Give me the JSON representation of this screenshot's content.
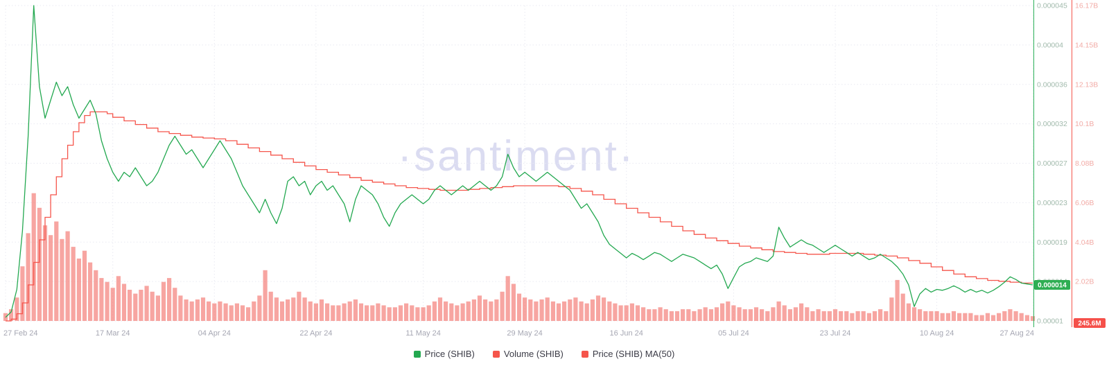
{
  "watermark": "·santiment·",
  "legend": {
    "items": [
      {
        "label": "Price (SHIB)",
        "color": "#23a850"
      },
      {
        "label": "Volume (SHIB)",
        "color": "#f5554b"
      },
      {
        "label": "Price (SHIB) MA(50)",
        "color": "#f5554b"
      }
    ]
  },
  "chart_data": {
    "type": "line",
    "title": "",
    "x_range": [
      "27 Feb 24",
      "27 Aug 24"
    ],
    "x_unit": "days since 27 Feb 24",
    "x_tick_days": [
      0,
      19,
      37,
      55,
      74,
      92,
      110,
      129,
      147,
      165,
      182
    ],
    "x_tick_labels": [
      "27 Feb 24",
      "17 Mar 24",
      "04 Apr 24",
      "22 Apr 24",
      "11 May 24",
      "29 May 24",
      "16 Jun 24",
      "05 Jul 24",
      "23 Jul 24",
      "10 Aug 24",
      "27 Aug 24"
    ],
    "grid": true,
    "legend_position": "bottom-center",
    "price_axis": {
      "side": "right",
      "color": "#2bb159",
      "label_color": "#a0b9ab",
      "min": 1e-05,
      "max": 4.5e-05,
      "tick_labels": [
        "0.000045",
        "0.00004",
        "0.000036",
        "0.000032",
        "0.000027",
        "0.000023",
        "0.000019",
        "0.000014",
        "0.00001"
      ]
    },
    "volume_axis": {
      "side": "far-right",
      "color": "#f5554b",
      "label_color": "#f2aba6",
      "min": 0,
      "max_label": "16.17B",
      "tick_labels": [
        "16.17B",
        "14.15B",
        "12.13B",
        "10.1B",
        "8.08B",
        "6.06B",
        "4.04B",
        "2.02B",
        "0"
      ]
    },
    "current": {
      "price_label": "0.000014",
      "price_value_micro": 14.0,
      "price_badge_color": "#2fae53",
      "volume_label": "245.6M",
      "volume_value_b": 0.2456,
      "volume_badge_color": "#f5504a"
    },
    "series": [
      {
        "name": "Price (SHIB)",
        "type": "line",
        "color": "#23a850",
        "unit": "1e-6 USD",
        "values": [
          10.4,
          11.0,
          13.5,
          20.0,
          30.5,
          45.0,
          36.0,
          32.5,
          34.5,
          36.5,
          35.0,
          36.0,
          34.0,
          32.5,
          33.5,
          34.5,
          33.0,
          30.0,
          28.0,
          26.5,
          25.5,
          26.5,
          26.0,
          27.0,
          26.0,
          25.0,
          25.5,
          26.5,
          28.0,
          29.5,
          30.5,
          29.5,
          28.5,
          29.0,
          28.0,
          27.0,
          28.0,
          29.0,
          30.0,
          29.0,
          28.0,
          26.5,
          25.0,
          24.0,
          23.0,
          22.0,
          23.5,
          22.0,
          20.8,
          22.5,
          25.5,
          26.0,
          25.0,
          25.5,
          24.0,
          25.0,
          25.5,
          24.5,
          25.0,
          24.0,
          23.0,
          21.0,
          23.5,
          25.0,
          24.5,
          24.0,
          23.0,
          21.5,
          20.5,
          22.0,
          23.0,
          23.5,
          24.0,
          23.5,
          23.0,
          23.5,
          24.5,
          25.0,
          24.5,
          24.0,
          24.5,
          25.0,
          24.5,
          25.0,
          25.5,
          25.0,
          24.5,
          25.0,
          26.0,
          28.5,
          27.0,
          26.0,
          26.5,
          26.0,
          25.5,
          26.0,
          26.5,
          26.0,
          25.5,
          25.0,
          24.5,
          23.5,
          22.5,
          23.0,
          22.0,
          21.0,
          19.5,
          18.5,
          18.0,
          17.5,
          17.0,
          17.5,
          17.2,
          16.8,
          17.2,
          17.6,
          17.4,
          17.0,
          16.6,
          17.0,
          17.4,
          17.2,
          17.0,
          16.6,
          16.2,
          15.8,
          16.2,
          15.2,
          13.6,
          14.8,
          16.0,
          16.4,
          16.6,
          17.0,
          16.8,
          16.6,
          17.2,
          20.4,
          19.2,
          18.2,
          18.6,
          19.0,
          18.6,
          18.4,
          18.0,
          17.6,
          18.0,
          18.4,
          18.0,
          17.6,
          17.2,
          17.6,
          17.2,
          16.8,
          17.0,
          17.4,
          17.0,
          16.6,
          16.0,
          15.2,
          14.0,
          11.6,
          13.0,
          13.6,
          13.2,
          13.5,
          13.4,
          13.6,
          13.9,
          13.6,
          13.2,
          13.5,
          13.2,
          13.4,
          13.1,
          13.4,
          13.8,
          14.3,
          14.9,
          14.6,
          14.2,
          14.1,
          14.0
        ]
      },
      {
        "name": "Price (SHIB) MA(50)",
        "type": "step-line",
        "color": "#f5554b",
        "unit": "1e-6 USD",
        "values": [
          10.0,
          10.2,
          10.8,
          12.0,
          14.0,
          16.5,
          19.0,
          21.5,
          24.0,
          26.0,
          28.0,
          29.5,
          31.0,
          32.0,
          32.8,
          33.2,
          33.2,
          33.2,
          33.0,
          32.6,
          32.6,
          32.2,
          32.2,
          31.8,
          31.8,
          31.4,
          31.4,
          31.0,
          31.0,
          30.8,
          30.8,
          30.6,
          30.6,
          30.4,
          30.4,
          30.3,
          30.3,
          30.2,
          30.2,
          30.0,
          30.0,
          29.6,
          29.6,
          29.2,
          29.2,
          28.8,
          28.8,
          28.4,
          28.4,
          28.0,
          28.0,
          27.6,
          27.6,
          27.2,
          27.2,
          26.8,
          26.8,
          26.5,
          26.5,
          26.2,
          26.2,
          25.9,
          25.9,
          25.6,
          25.6,
          25.4,
          25.4,
          25.2,
          25.2,
          25.0,
          25.0,
          24.8,
          24.8,
          24.7,
          24.7,
          24.6,
          24.6,
          24.5,
          24.5,
          24.5,
          24.5,
          24.5,
          24.6,
          24.6,
          24.7,
          24.7,
          24.8,
          24.8,
          24.9,
          24.9,
          25.0,
          25.0,
          25.0,
          25.0,
          25.0,
          25.0,
          25.0,
          25.0,
          24.9,
          24.9,
          24.7,
          24.7,
          24.4,
          24.4,
          24.0,
          24.0,
          23.5,
          23.5,
          23.0,
          23.0,
          22.5,
          22.5,
          22.0,
          22.0,
          21.5,
          21.5,
          21.0,
          21.0,
          20.5,
          20.5,
          20.0,
          20.0,
          19.6,
          19.6,
          19.2,
          19.2,
          18.9,
          18.9,
          18.6,
          18.6,
          18.3,
          18.3,
          18.1,
          18.1,
          17.9,
          17.9,
          17.7,
          17.7,
          17.6,
          17.6,
          17.5,
          17.5,
          17.4,
          17.4,
          17.4,
          17.4,
          17.5,
          17.5,
          17.5,
          17.5,
          17.5,
          17.5,
          17.4,
          17.4,
          17.3,
          17.3,
          17.2,
          17.2,
          17.0,
          17.0,
          16.7,
          16.7,
          16.4,
          16.4,
          16.0,
          16.0,
          15.6,
          15.6,
          15.2,
          15.2,
          14.9,
          14.9,
          14.7,
          14.7,
          14.5,
          14.5,
          14.4,
          14.4,
          14.3,
          14.3,
          14.2,
          14.2,
          14.2
        ]
      },
      {
        "name": "Volume (SHIB)",
        "type": "bar",
        "color": "#f26d68",
        "unit": "1e9 USD",
        "values": [
          0.4,
          0.6,
          1.2,
          2.8,
          4.5,
          6.55,
          5.8,
          4.9,
          4.4,
          5.1,
          4.2,
          4.6,
          3.8,
          3.2,
          3.6,
          3.0,
          2.6,
          2.2,
          2.0,
          1.7,
          2.3,
          1.9,
          1.6,
          1.4,
          1.6,
          1.8,
          1.5,
          1.3,
          2.0,
          2.2,
          1.7,
          1.3,
          1.1,
          1.0,
          1.1,
          1.2,
          1.0,
          0.9,
          1.0,
          0.9,
          0.8,
          0.9,
          0.8,
          0.7,
          1.0,
          1.3,
          2.6,
          1.5,
          1.2,
          1.0,
          1.1,
          1.2,
          1.5,
          1.2,
          1.0,
          0.9,
          1.1,
          0.9,
          0.8,
          0.8,
          0.9,
          1.0,
          1.1,
          0.9,
          0.8,
          0.8,
          0.9,
          0.8,
          0.7,
          0.7,
          0.8,
          0.9,
          0.8,
          0.7,
          0.7,
          0.8,
          1.0,
          1.2,
          1.0,
          0.9,
          0.8,
          0.9,
          1.0,
          1.1,
          1.3,
          1.1,
          1.0,
          1.1,
          1.5,
          2.3,
          1.9,
          1.4,
          1.2,
          1.1,
          1.0,
          1.1,
          1.2,
          1.0,
          0.9,
          1.0,
          1.1,
          1.2,
          1.0,
          0.9,
          1.1,
          1.3,
          1.2,
          1.0,
          0.9,
          0.8,
          0.8,
          0.9,
          0.8,
          0.7,
          0.6,
          0.6,
          0.7,
          0.6,
          0.5,
          0.5,
          0.6,
          0.6,
          0.5,
          0.6,
          0.7,
          0.6,
          0.7,
          0.9,
          1.0,
          0.8,
          0.7,
          0.6,
          0.6,
          0.7,
          0.6,
          0.5,
          0.7,
          1.0,
          0.8,
          0.6,
          0.7,
          0.9,
          0.7,
          0.5,
          0.6,
          0.5,
          0.5,
          0.6,
          0.5,
          0.5,
          0.4,
          0.5,
          0.5,
          0.4,
          0.5,
          0.6,
          0.5,
          1.2,
          2.1,
          1.4,
          0.9,
          0.7,
          0.6,
          0.5,
          0.5,
          0.5,
          0.4,
          0.4,
          0.5,
          0.4,
          0.4,
          0.4,
          0.3,
          0.3,
          0.4,
          0.3,
          0.4,
          0.5,
          0.6,
          0.5,
          0.4,
          0.3,
          0.2456
        ]
      }
    ]
  }
}
